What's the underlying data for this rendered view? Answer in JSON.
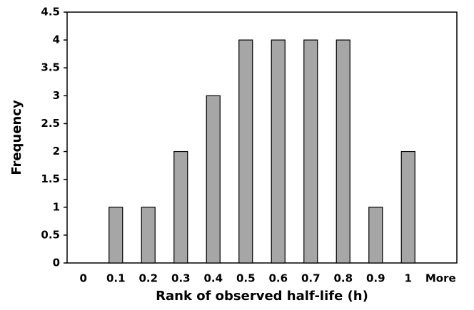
{
  "chart_data": {
    "type": "bar",
    "x_label": "Rank of observed half-life (h)",
    "y_label": "Frequency",
    "categories": [
      "0",
      "0.1",
      "0.2",
      "0.3",
      "0.4",
      "0.5",
      "0.6",
      "0.7",
      "0.8",
      "0.9",
      "1",
      "More"
    ],
    "values": [
      0,
      1,
      1,
      2,
      3,
      4,
      4,
      4,
      4,
      1,
      2,
      0
    ],
    "color": "#a6a6a6",
    "ylim": [
      0,
      4.5
    ],
    "yticks": [
      0,
      0.5,
      1,
      1.5,
      2,
      2.5,
      3,
      3.5,
      4,
      4.5
    ],
    "grid": false
  }
}
